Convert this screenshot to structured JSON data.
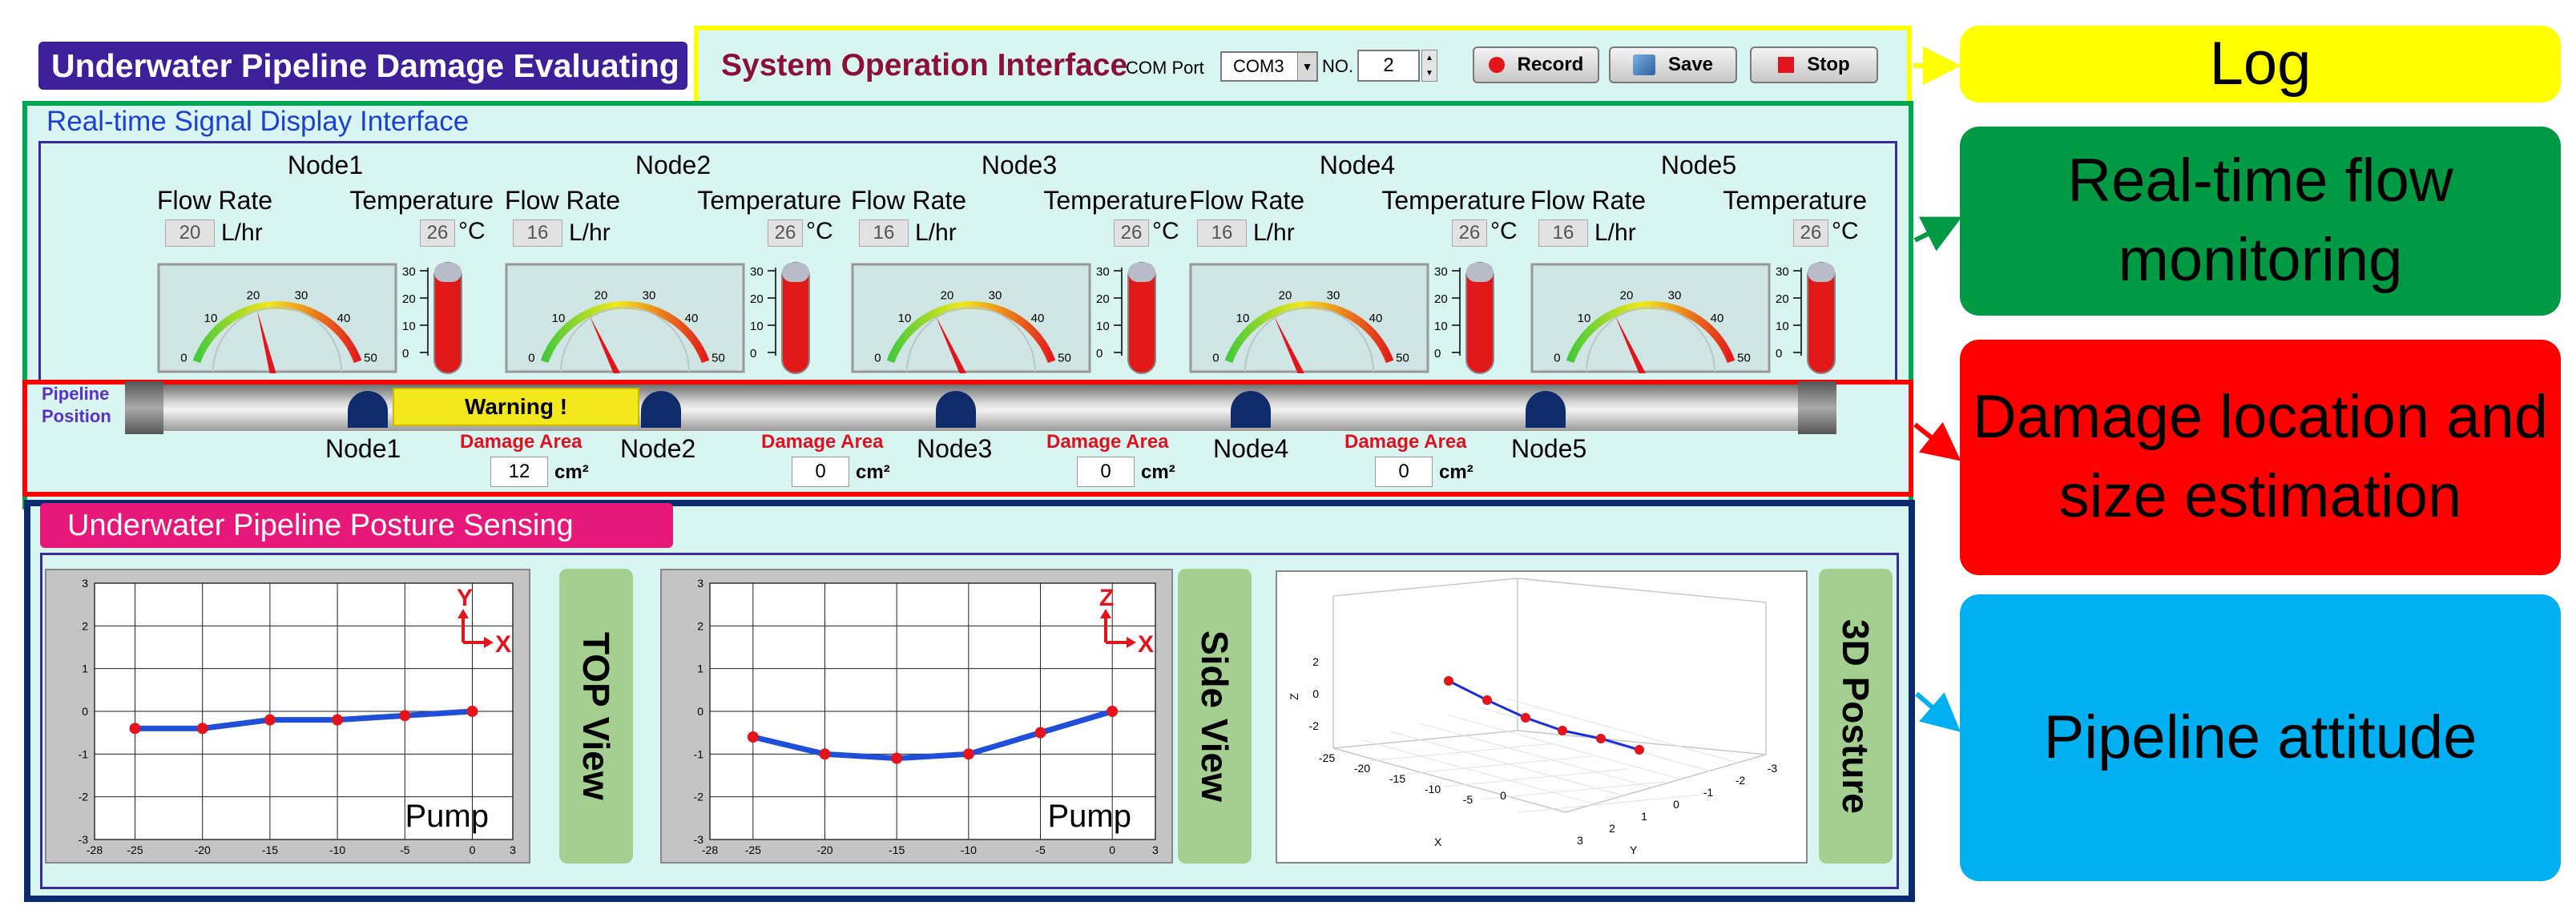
{
  "header": {
    "app_title": "Underwater Pipeline Damage Evaluating",
    "system_title": "System Operation Interface",
    "com_port_label": "COM Port",
    "com_port_value": "COM3",
    "no_label": "NO.",
    "no_value": "2",
    "record_label": "Record",
    "save_label": "Save",
    "stop_label": "Stop"
  },
  "realtime": {
    "title": "Real-time Signal Display Interface",
    "flow_label": "Flow Rate",
    "temp_label": "Temperature",
    "flow_unit": "L/hr",
    "temp_unit": "°C",
    "gauge_ticks": [
      "0",
      "10",
      "20",
      "30",
      "40",
      "50"
    ],
    "thermo_ticks": [
      "30",
      "20",
      "10",
      "0"
    ],
    "nodes": [
      {
        "name": "Node1",
        "flow": "20",
        "temp": "26",
        "flow_value": 20
      },
      {
        "name": "Node2",
        "flow": "16",
        "temp": "26",
        "flow_value": 16
      },
      {
        "name": "Node3",
        "flow": "16",
        "temp": "26",
        "flow_value": 16
      },
      {
        "name": "Node4",
        "flow": "16",
        "temp": "26",
        "flow_value": 16
      },
      {
        "name": "Node5",
        "flow": "16",
        "temp": "26",
        "flow_value": 16
      }
    ]
  },
  "pipeline": {
    "position_label_1": "Pipeline",
    "position_label_2": "Position",
    "warning": "Warning !",
    "damage_area_label": "Damage Area",
    "area_unit": "cm²",
    "nodes": [
      "Node1",
      "Node2",
      "Node3",
      "Node4",
      "Node5"
    ],
    "damage_areas": [
      "12",
      "0",
      "0",
      "0"
    ]
  },
  "posture": {
    "title": "Underwater Pipeline Posture Sensing",
    "top_view_label": "TOP View",
    "side_view_label": "Side View",
    "posture_3d_label": "3D Posture",
    "pump_label": "Pump"
  },
  "side_labels": {
    "log": "Log",
    "flow": "Real-time flow monitoring",
    "damage": "Damage location and size estimation",
    "attitude": "Pipeline attitude"
  },
  "colors": {
    "series": "#1f4fd8",
    "marker": "#e2141c",
    "panel_bg": "#d8f5f2"
  },
  "chart_data": [
    {
      "type": "line",
      "name": "top-view",
      "x": [
        -25,
        -20,
        -15,
        -10,
        -5,
        0
      ],
      "y": [
        -0.4,
        -0.4,
        -0.2,
        -0.2,
        -0.1,
        0
      ],
      "xlim": [
        -28,
        3
      ],
      "ylim": [
        -3,
        3
      ],
      "xticks": [
        "-28",
        "-25",
        "-20",
        "-15",
        "-10",
        "-5",
        "0",
        "3"
      ],
      "yticks": [
        "3",
        "2",
        "1",
        "0",
        "-1",
        "-2",
        "-3"
      ],
      "axis_h": "X",
      "axis_v": "Y",
      "grid": true
    },
    {
      "type": "line",
      "name": "side-view",
      "x": [
        -25,
        -20,
        -15,
        -10,
        -5,
        0
      ],
      "y": [
        -0.6,
        -1.0,
        -1.1,
        -1.0,
        -0.5,
        0
      ],
      "xlim": [
        -28,
        3
      ],
      "ylim": [
        -3,
        3
      ],
      "xticks": [
        "-28",
        "-25",
        "-20",
        "-15",
        "-10",
        "-5",
        "0",
        "3"
      ],
      "yticks": [
        "3",
        "2",
        "1",
        "0",
        "-1",
        "-2",
        "-3"
      ],
      "axis_h": "X",
      "axis_v": "Z",
      "grid": true
    },
    {
      "type": "scatter",
      "name": "3d-posture",
      "axis_x": "X",
      "axis_y": "Y",
      "axis_z": "Z",
      "z_ticks": [
        "2",
        "0",
        "-2"
      ],
      "x_ticks": [
        "0",
        "-5",
        "-10",
        "-15",
        "-20",
        "-25"
      ],
      "y_ticks": [
        "-3",
        "-2",
        "-1",
        "0",
        "1",
        "2",
        "3"
      ]
    }
  ]
}
